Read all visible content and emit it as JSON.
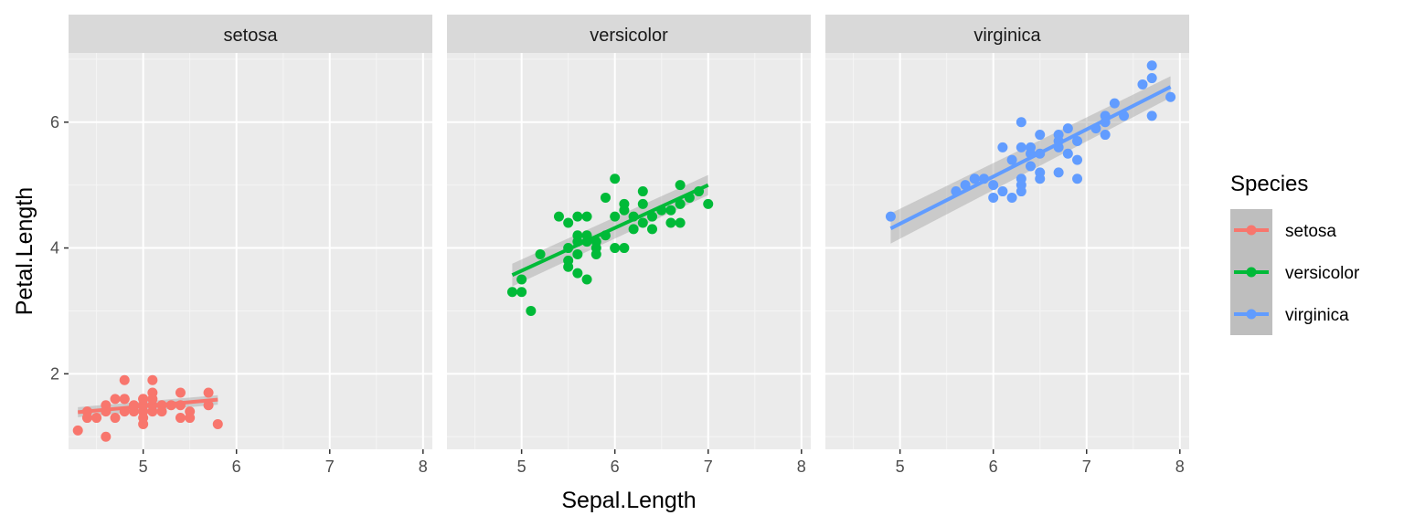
{
  "chart_data": {
    "type": "scatter",
    "xlabel": "Sepal.Length",
    "ylabel": "Petal.Length",
    "xlim": [
      4.2,
      8.1
    ],
    "ylim": [
      0.8,
      7.1
    ],
    "x_ticks": [
      5,
      6,
      7,
      8
    ],
    "y_ticks": [
      2,
      4,
      6
    ],
    "grid": true,
    "facets": [
      "setosa",
      "versicolor",
      "virginica"
    ],
    "legend": {
      "title": "Species",
      "placement": "right",
      "entries": [
        "setosa",
        "versicolor",
        "virginica"
      ]
    },
    "series": [
      {
        "name": "setosa",
        "color": "#F8766D",
        "smooth": {
          "method": "lm",
          "x": [
            4.3,
            5.8
          ],
          "y": [
            1.39,
            1.59
          ],
          "se_upper": [
            1.47,
            1.66
          ],
          "se_lower": [
            1.31,
            1.51
          ]
        },
        "points": [
          [
            4.3,
            1.1
          ],
          [
            4.4,
            1.4
          ],
          [
            4.4,
            1.3
          ],
          [
            4.5,
            1.3
          ],
          [
            4.6,
            1.4
          ],
          [
            4.6,
            1.5
          ],
          [
            4.6,
            1.0
          ],
          [
            4.7,
            1.3
          ],
          [
            4.7,
            1.6
          ],
          [
            4.8,
            1.6
          ],
          [
            4.8,
            1.4
          ],
          [
            4.8,
            1.9
          ],
          [
            4.8,
            1.6
          ],
          [
            4.9,
            1.4
          ],
          [
            4.9,
            1.5
          ],
          [
            5.0,
            1.4
          ],
          [
            5.0,
            1.5
          ],
          [
            5.0,
            1.2
          ],
          [
            5.0,
            1.3
          ],
          [
            5.0,
            1.6
          ],
          [
            5.0,
            1.6
          ],
          [
            5.1,
            1.4
          ],
          [
            5.1,
            1.5
          ],
          [
            5.1,
            1.7
          ],
          [
            5.1,
            1.9
          ],
          [
            5.1,
            1.6
          ],
          [
            5.2,
            1.5
          ],
          [
            5.2,
            1.4
          ],
          [
            5.3,
            1.5
          ],
          [
            5.4,
            1.7
          ],
          [
            5.4,
            1.5
          ],
          [
            5.4,
            1.3
          ],
          [
            5.5,
            1.4
          ],
          [
            5.5,
            1.3
          ],
          [
            5.7,
            1.5
          ],
          [
            5.7,
            1.7
          ],
          [
            5.8,
            1.2
          ]
        ]
      },
      {
        "name": "versicolor",
        "color": "#00BA38",
        "smooth": {
          "method": "lm",
          "x": [
            4.9,
            7.0
          ],
          "y": [
            3.57,
            5.0
          ],
          "se_upper": [
            3.75,
            5.16
          ],
          "se_lower": [
            3.39,
            4.84
          ]
        },
        "points": [
          [
            4.9,
            3.3
          ],
          [
            5.0,
            3.5
          ],
          [
            5.0,
            3.3
          ],
          [
            5.1,
            3.0
          ],
          [
            5.2,
            3.9
          ],
          [
            5.4,
            4.5
          ],
          [
            5.5,
            4.0
          ],
          [
            5.5,
            3.8
          ],
          [
            5.5,
            3.7
          ],
          [
            5.5,
            4.4
          ],
          [
            5.6,
            4.5
          ],
          [
            5.6,
            3.6
          ],
          [
            5.6,
            4.2
          ],
          [
            5.6,
            3.9
          ],
          [
            5.6,
            4.1
          ],
          [
            5.7,
            4.5
          ],
          [
            5.7,
            3.5
          ],
          [
            5.7,
            4.2
          ],
          [
            5.7,
            4.1
          ],
          [
            5.8,
            4.1
          ],
          [
            5.8,
            4.0
          ],
          [
            5.8,
            3.9
          ],
          [
            5.9,
            4.8
          ],
          [
            5.9,
            4.2
          ],
          [
            6.0,
            4.0
          ],
          [
            6.0,
            4.5
          ],
          [
            6.0,
            5.1
          ],
          [
            6.1,
            4.7
          ],
          [
            6.1,
            4.0
          ],
          [
            6.1,
            4.6
          ],
          [
            6.2,
            4.5
          ],
          [
            6.2,
            4.3
          ],
          [
            6.3,
            4.9
          ],
          [
            6.3,
            4.4
          ],
          [
            6.3,
            4.7
          ],
          [
            6.4,
            4.3
          ],
          [
            6.4,
            4.5
          ],
          [
            6.5,
            4.6
          ],
          [
            6.6,
            4.4
          ],
          [
            6.6,
            4.6
          ],
          [
            6.7,
            4.7
          ],
          [
            6.7,
            4.4
          ],
          [
            6.7,
            5.0
          ],
          [
            6.8,
            4.8
          ],
          [
            6.9,
            4.9
          ],
          [
            7.0,
            4.7
          ]
        ]
      },
      {
        "name": "virginica",
        "color": "#619CFF",
        "smooth": {
          "method": "lm",
          "x": [
            4.9,
            7.9
          ],
          "y": [
            4.31,
            6.56
          ],
          "se_upper": [
            4.55,
            6.73
          ],
          "se_lower": [
            4.07,
            6.39
          ]
        },
        "points": [
          [
            4.9,
            4.5
          ],
          [
            5.6,
            4.9
          ],
          [
            5.7,
            5.0
          ],
          [
            5.8,
            5.1
          ],
          [
            5.8,
            5.1
          ],
          [
            5.9,
            5.1
          ],
          [
            6.0,
            5.0
          ],
          [
            6.0,
            4.8
          ],
          [
            6.1,
            5.6
          ],
          [
            6.1,
            4.9
          ],
          [
            6.2,
            5.4
          ],
          [
            6.2,
            4.8
          ],
          [
            6.3,
            6.0
          ],
          [
            6.3,
            5.1
          ],
          [
            6.3,
            5.6
          ],
          [
            6.3,
            4.9
          ],
          [
            6.3,
            5.0
          ],
          [
            6.4,
            5.3
          ],
          [
            6.4,
            5.5
          ],
          [
            6.4,
            5.6
          ],
          [
            6.5,
            5.8
          ],
          [
            6.5,
            5.5
          ],
          [
            6.5,
            5.1
          ],
          [
            6.5,
            5.2
          ],
          [
            6.7,
            5.8
          ],
          [
            6.7,
            5.7
          ],
          [
            6.7,
            5.6
          ],
          [
            6.7,
            5.2
          ],
          [
            6.8,
            5.5
          ],
          [
            6.8,
            5.9
          ],
          [
            6.9,
            5.4
          ],
          [
            6.9,
            5.7
          ],
          [
            6.9,
            5.1
          ],
          [
            7.1,
            5.9
          ],
          [
            7.2,
            6.1
          ],
          [
            7.2,
            6.0
          ],
          [
            7.2,
            5.8
          ],
          [
            7.3,
            6.3
          ],
          [
            7.4,
            6.1
          ],
          [
            7.6,
            6.6
          ],
          [
            7.7,
            6.9
          ],
          [
            7.7,
            6.7
          ],
          [
            7.7,
            6.1
          ],
          [
            7.9,
            6.4
          ]
        ]
      }
    ]
  }
}
